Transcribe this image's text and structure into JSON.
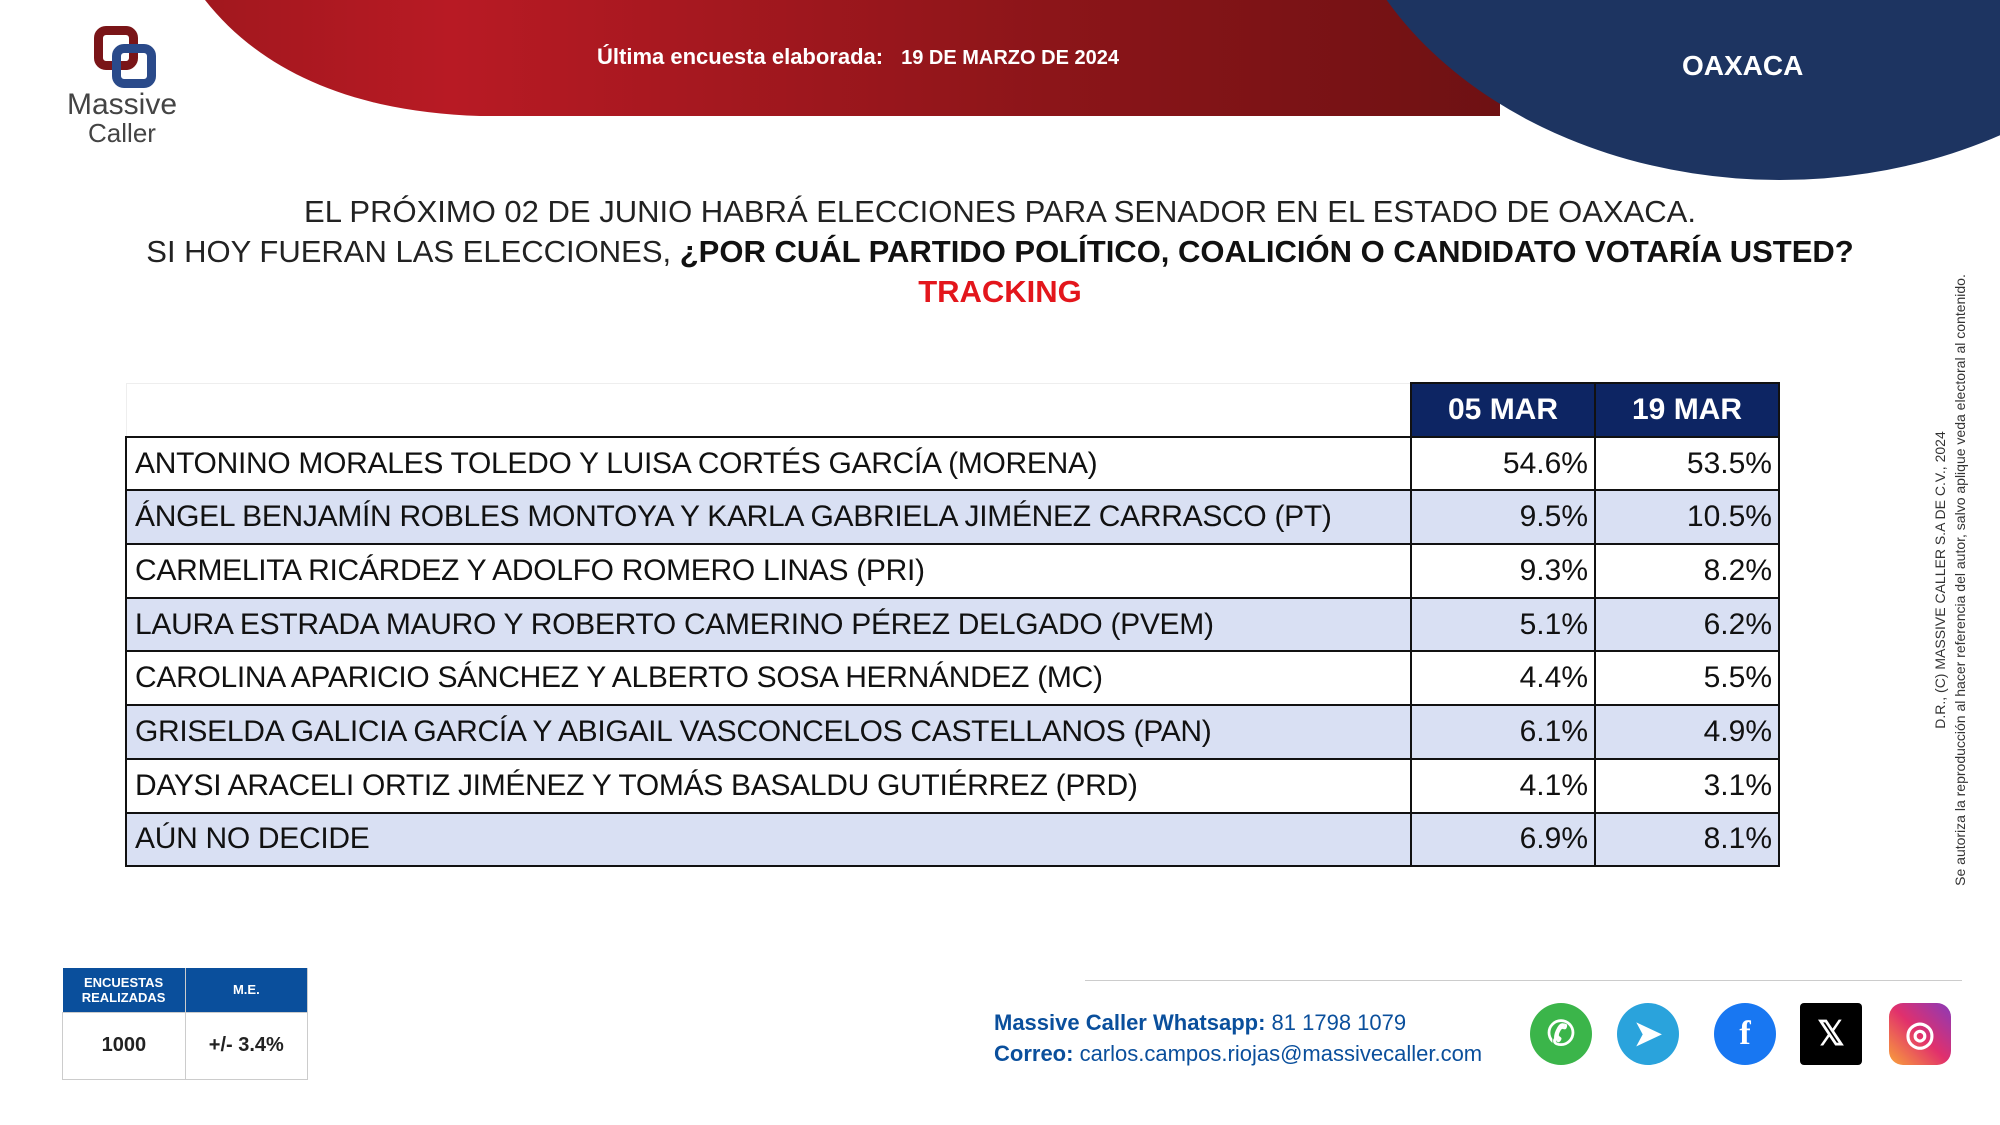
{
  "header": {
    "last_poll_label": "Última encuesta elaborada:",
    "last_poll_date": "19 DE MARZO DE 2024",
    "state": "OAXACA"
  },
  "logo": {
    "line1": "Massive",
    "line2": "Caller"
  },
  "question": {
    "line1": "EL PRÓXIMO 02 DE JUNIO HABRÁ ELECCIONES PARA SENADOR EN EL ESTADO DE OAXACA.",
    "line2_normal": "SI HOY FUERAN LAS ELECCIONES, ",
    "line2_bold": "¿POR CUÁL PARTIDO POLÍTICO, COALICIÓN O CANDIDATO VOTARÍA USTED?",
    "line3": "TRACKING"
  },
  "table": {
    "columns": [
      "05 MAR",
      "19 MAR"
    ],
    "rows": [
      {
        "name": "ANTONINO MORALES TOLEDO Y LUISA CORTÉS GARCÍA (MORENA)",
        "v": [
          "54.6%",
          "53.5%"
        ]
      },
      {
        "name": "ÁNGEL BENJAMÍN ROBLES MONTOYA Y KARLA GABRIELA JIMÉNEZ CARRASCO (PT)",
        "v": [
          "9.5%",
          "10.5%"
        ]
      },
      {
        "name": "CARMELITA RICÁRDEZ Y ADOLFO ROMERO LINAS (PRI)",
        "v": [
          "9.3%",
          "8.2%"
        ]
      },
      {
        "name": "LAURA ESTRADA MAURO Y ROBERTO CAMERINO PÉREZ DELGADO (PVEM)",
        "v": [
          "5.1%",
          "6.2%"
        ]
      },
      {
        "name": "CAROLINA APARICIO SÁNCHEZ Y ALBERTO SOSA HERNÁNDEZ (MC)",
        "v": [
          "4.4%",
          "5.5%"
        ]
      },
      {
        "name": " GRISELDA GALICIA GARCÍA Y ABIGAIL VASCONCELOS CASTELLANOS (PAN)",
        "v": [
          "6.1%",
          "4.9%"
        ]
      },
      {
        "name": "DAYSI ARACELI ORTIZ JIMÉNEZ Y TOMÁS BASALDU GUTIÉRREZ (PRD)",
        "v": [
          "4.1%",
          "3.1%"
        ]
      },
      {
        "name": "AÚN NO DECIDE",
        "v": [
          "6.9%",
          "8.1%"
        ]
      }
    ]
  },
  "sample": {
    "h1": "ENCUESTAS REALIZADAS",
    "h2": "M.E.",
    "n": "1000",
    "me": "+/- 3.4%"
  },
  "contact": {
    "wa_label": "Massive Caller Whatsapp:",
    "wa": " 81 1798 1079",
    "mail_label": "Correo:",
    "mail": " carlos.campos.riojas@massivecaller.com"
  },
  "social": [
    "whatsapp-icon",
    "telegram-icon",
    "facebook-icon",
    "x-icon",
    "instagram-icon"
  ],
  "legal": {
    "line1": "D.R., (C) MASSIVE CALLER S.A DE C.V., 2024",
    "line2": "Se autoriza la reproducción al hacer referencia del autor, salvo aplique veda electoral al contenido."
  }
}
